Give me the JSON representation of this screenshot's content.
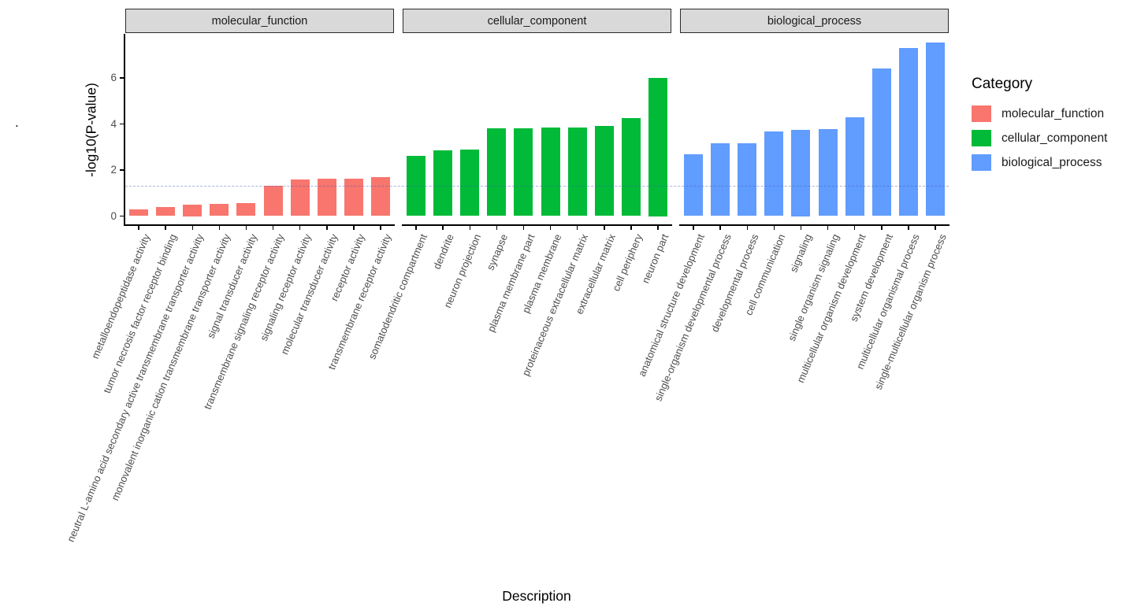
{
  "chart_data": {
    "type": "bar",
    "title": ".",
    "xlabel": "Description",
    "ylabel": "-log10(P-value)",
    "ylim": [
      0,
      7.9
    ],
    "yticks": [
      0,
      2,
      4,
      6
    ],
    "grid": false,
    "significance_line": {
      "value": 1.301,
      "style": "dashed",
      "color": "rgba(68,90,180,0.45)"
    },
    "strip_fill": "#D9D9D9",
    "legend": {
      "title": "Category",
      "position": "right",
      "entries": [
        {
          "label": "molecular_function",
          "color": "#F8766D"
        },
        {
          "label": "cellular_component",
          "color": "#00BA38"
        },
        {
          "label": "biological_process",
          "color": "#619CFF"
        }
      ]
    },
    "facets": [
      {
        "name": "molecular_function",
        "color": "#F8766D",
        "categories": [
          "metalloendopeptidase activity",
          "tumor necrosis factor receptor binding",
          "neutral L-amino acid secondary active transmembrane transporter activity",
          "monovalent inorganic cation transmembrane transporter activity",
          "signal transducer activity",
          "transmembrane signaling receptor activity",
          "signaling receptor activity",
          "molecular transducer activity",
          "receptor activity",
          "transmembrane receptor activity"
        ],
        "values": [
          0.3,
          0.38,
          0.5,
          0.52,
          0.57,
          1.3,
          1.6,
          1.62,
          1.62,
          1.7
        ]
      },
      {
        "name": "cellular_component",
        "color": "#00BA38",
        "categories": [
          "somatodendritic compartment",
          "dendrite",
          "neuron projection",
          "synapse",
          "plasma membrane part",
          "plasma membrane",
          "proteinaceous extracellular matrix",
          "extracellular matrix",
          "cell periphery",
          "neuron part"
        ],
        "values": [
          2.6,
          2.85,
          2.9,
          3.8,
          3.8,
          3.83,
          3.85,
          3.9,
          4.27,
          6.0
        ]
      },
      {
        "name": "biological_process",
        "color": "#619CFF",
        "categories": [
          "anatomical structure development",
          "single-organism developmental process",
          "developmental process",
          "cell communication",
          "signaling",
          "single organism signaling",
          "multicellular organism development",
          "system development",
          "multicellular organismal process",
          "single-multicellular organism process"
        ],
        "values": [
          2.68,
          3.15,
          3.15,
          3.68,
          3.75,
          3.77,
          4.28,
          6.4,
          7.3,
          7.55
        ]
      }
    ]
  }
}
